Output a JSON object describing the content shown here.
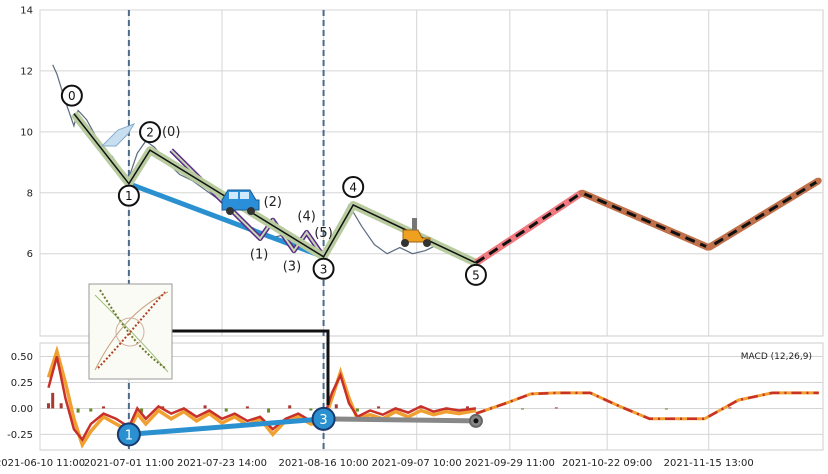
{
  "chart_data": [
    {
      "type": "line",
      "panel": "price",
      "ylim": [
        3.3,
        14
      ],
      "yticks": [
        6,
        8,
        10,
        12,
        14
      ],
      "xlim": [
        "2021-06-10",
        "2021-12-12"
      ],
      "grid": true,
      "price_series": [
        {
          "x": "2021-06-13",
          "y": 12.2
        },
        {
          "x": "2021-06-14",
          "y": 11.9
        },
        {
          "x": "2021-06-16",
          "y": 11.0
        },
        {
          "x": "2021-06-18",
          "y": 10.2
        },
        {
          "x": "2021-06-19",
          "y": 10.7
        },
        {
          "x": "2021-06-21",
          "y": 10.4
        },
        {
          "x": "2021-06-23",
          "y": 9.9
        },
        {
          "x": "2021-06-25",
          "y": 9.4
        },
        {
          "x": "2021-06-27",
          "y": 9.2
        },
        {
          "x": "2021-06-29",
          "y": 8.8
        },
        {
          "x": "2021-07-01",
          "y": 8.5
        },
        {
          "x": "2021-07-03",
          "y": 9.3
        },
        {
          "x": "2021-07-05",
          "y": 9.7
        },
        {
          "x": "2021-07-07",
          "y": 9.5
        },
        {
          "x": "2021-07-10",
          "y": 9.0
        },
        {
          "x": "2021-07-13",
          "y": 8.6
        },
        {
          "x": "2021-07-16",
          "y": 8.4
        },
        {
          "x": "2021-07-19",
          "y": 8.1
        },
        {
          "x": "2021-07-22",
          "y": 7.8
        },
        {
          "x": "2021-07-25",
          "y": 7.4
        },
        {
          "x": "2021-07-28",
          "y": 7.0
        },
        {
          "x": "2021-07-31",
          "y": 6.8
        },
        {
          "x": "2021-08-03",
          "y": 6.5
        },
        {
          "x": "2021-08-06",
          "y": 6.6
        },
        {
          "x": "2021-08-09",
          "y": 6.3
        },
        {
          "x": "2021-08-12",
          "y": 6.1
        },
        {
          "x": "2021-08-16",
          "y": 5.9
        },
        {
          "x": "2021-08-19",
          "y": 6.8
        },
        {
          "x": "2021-08-22",
          "y": 7.6
        },
        {
          "x": "2021-08-25",
          "y": 6.9
        },
        {
          "x": "2021-08-28",
          "y": 6.3
        },
        {
          "x": "2021-08-31",
          "y": 6.0
        },
        {
          "x": "2021-09-03",
          "y": 6.2
        },
        {
          "x": "2021-09-06",
          "y": 6.0
        },
        {
          "x": "2021-09-09",
          "y": 6.1
        },
        {
          "x": "2021-09-12",
          "y": 6.3
        },
        {
          "x": "2021-09-15",
          "y": 6.0
        },
        {
          "x": "2021-09-18",
          "y": 5.9
        },
        {
          "x": "2021-09-21",
          "y": 5.8
        }
      ],
      "wave_primary": [
        {
          "label": "0",
          "x": "2021-06-18",
          "y": 10.6
        },
        {
          "label": "1",
          "x": "2021-07-01",
          "y": 8.3
        },
        {
          "label": "2",
          "x": "2021-07-06",
          "y": 9.4
        },
        {
          "label": "3",
          "x": "2021-08-16",
          "y": 5.9
        },
        {
          "label": "4",
          "x": "2021-08-23",
          "y": 7.6
        },
        {
          "label": "5",
          "x": "2021-09-21",
          "y": 5.7
        }
      ],
      "wave_secondary": [
        {
          "label": "(0)",
          "x": "2021-07-11",
          "y": 9.4
        },
        {
          "label": "(1)",
          "x": "2021-08-01",
          "y": 6.5
        },
        {
          "label": "(2)",
          "x": "2021-08-04",
          "y": 7.1
        },
        {
          "label": "(3)",
          "x": "2021-08-09",
          "y": 6.1
        },
        {
          "label": "(4)",
          "x": "2021-08-12",
          "y": 6.7
        },
        {
          "label": "(5)",
          "x": "2021-08-16",
          "y": 5.9
        }
      ],
      "trend_line": [
        {
          "x": "2021-07-01",
          "y": 8.3
        },
        {
          "x": "2021-08-16",
          "y": 5.9
        }
      ],
      "forecast": [
        {
          "x": "2021-09-21",
          "y": 5.7
        },
        {
          "x": "2021-10-16",
          "y": 8.0
        },
        {
          "x": "2021-11-15",
          "y": 6.2
        },
        {
          "x": "2021-12-11",
          "y": 8.4
        }
      ],
      "vertical_markers": [
        "2021-07-01",
        "2021-08-16"
      ]
    },
    {
      "type": "line",
      "panel": "macd",
      "legend": "MACD (12,26,9)",
      "ylim": [
        -0.4,
        0.63
      ],
      "yticks": [
        -0.25,
        0.0,
        0.25,
        0.5
      ],
      "xticks": [
        "2021-06-10 11:00",
        "2021-07-01 11:00",
        "2021-07-23 14:00",
        "2021-08-16 10:00",
        "2021-09-07 10:00",
        "2021-09-29 11:00",
        "2021-10-22 09:00",
        "2021-11-15 13:00"
      ],
      "macd_line": [
        {
          "x": "2021-06-12",
          "y": 0.2
        },
        {
          "x": "2021-06-14",
          "y": 0.5
        },
        {
          "x": "2021-06-16",
          "y": 0.1
        },
        {
          "x": "2021-06-18",
          "y": -0.2
        },
        {
          "x": "2021-06-20",
          "y": -0.3
        },
        {
          "x": "2021-06-22",
          "y": -0.15
        },
        {
          "x": "2021-06-25",
          "y": -0.05
        },
        {
          "x": "2021-06-28",
          "y": -0.1
        },
        {
          "x": "2021-07-01",
          "y": -0.18
        },
        {
          "x": "2021-07-03",
          "y": 0.0
        },
        {
          "x": "2021-07-05",
          "y": -0.1
        },
        {
          "x": "2021-07-08",
          "y": 0.02
        },
        {
          "x": "2021-07-11",
          "y": -0.05
        },
        {
          "x": "2021-07-14",
          "y": 0.0
        },
        {
          "x": "2021-07-17",
          "y": -0.08
        },
        {
          "x": "2021-07-20",
          "y": -0.02
        },
        {
          "x": "2021-07-23",
          "y": -0.1
        },
        {
          "x": "2021-07-26",
          "y": -0.05
        },
        {
          "x": "2021-07-29",
          "y": -0.12
        },
        {
          "x": "2021-08-01",
          "y": -0.08
        },
        {
          "x": "2021-08-04",
          "y": -0.2
        },
        {
          "x": "2021-08-07",
          "y": -0.1
        },
        {
          "x": "2021-08-10",
          "y": -0.05
        },
        {
          "x": "2021-08-13",
          "y": -0.12
        },
        {
          "x": "2021-08-16",
          "y": -0.1
        },
        {
          "x": "2021-08-18",
          "y": 0.15
        },
        {
          "x": "2021-08-20",
          "y": 0.32
        },
        {
          "x": "2021-08-22",
          "y": 0.05
        },
        {
          "x": "2021-08-24",
          "y": -0.08
        },
        {
          "x": "2021-08-27",
          "y": -0.02
        },
        {
          "x": "2021-08-30",
          "y": -0.06
        },
        {
          "x": "2021-09-02",
          "y": 0.0
        },
        {
          "x": "2021-09-05",
          "y": -0.04
        },
        {
          "x": "2021-09-08",
          "y": 0.02
        },
        {
          "x": "2021-09-11",
          "y": -0.03
        },
        {
          "x": "2021-09-14",
          "y": 0.0
        },
        {
          "x": "2021-09-17",
          "y": -0.02
        },
        {
          "x": "2021-09-21",
          "y": 0.0
        }
      ],
      "signal_line": [
        {
          "x": "2021-06-12",
          "y": 0.3
        },
        {
          "x": "2021-06-14",
          "y": 0.55
        },
        {
          "x": "2021-06-16",
          "y": 0.25
        },
        {
          "x": "2021-06-18",
          "y": -0.1
        },
        {
          "x": "2021-06-20",
          "y": -0.35
        },
        {
          "x": "2021-06-22",
          "y": -0.22
        },
        {
          "x": "2021-06-25",
          "y": -0.08
        },
        {
          "x": "2021-06-28",
          "y": -0.15
        },
        {
          "x": "2021-07-01",
          "y": -0.22
        },
        {
          "x": "2021-07-03",
          "y": -0.05
        },
        {
          "x": "2021-07-05",
          "y": -0.15
        },
        {
          "x": "2021-07-08",
          "y": -0.02
        },
        {
          "x": "2021-07-11",
          "y": -0.1
        },
        {
          "x": "2021-07-14",
          "y": -0.03
        },
        {
          "x": "2021-07-17",
          "y": -0.12
        },
        {
          "x": "2021-07-20",
          "y": -0.05
        },
        {
          "x": "2021-07-23",
          "y": -0.14
        },
        {
          "x": "2021-07-26",
          "y": -0.08
        },
        {
          "x": "2021-07-29",
          "y": -0.16
        },
        {
          "x": "2021-08-01",
          "y": -0.1
        },
        {
          "x": "2021-08-04",
          "y": -0.25
        },
        {
          "x": "2021-08-07",
          "y": -0.12
        },
        {
          "x": "2021-08-10",
          "y": -0.08
        },
        {
          "x": "2021-08-13",
          "y": -0.15
        },
        {
          "x": "2021-08-16",
          "y": -0.14
        },
        {
          "x": "2021-08-18",
          "y": 0.1
        },
        {
          "x": "2021-08-20",
          "y": 0.35
        },
        {
          "x": "2021-08-22",
          "y": 0.1
        },
        {
          "x": "2021-08-24",
          "y": -0.1
        },
        {
          "x": "2021-08-27",
          "y": -0.06
        },
        {
          "x": "2021-08-30",
          "y": -0.1
        },
        {
          "x": "2021-09-02",
          "y": -0.03
        },
        {
          "x": "2021-09-05",
          "y": -0.08
        },
        {
          "x": "2021-09-08",
          "y": -0.02
        },
        {
          "x": "2021-09-11",
          "y": -0.06
        },
        {
          "x": "2021-09-14",
          "y": -0.03
        },
        {
          "x": "2021-09-17",
          "y": -0.05
        },
        {
          "x": "2021-09-21",
          "y": -0.02
        }
      ],
      "histogram": [
        {
          "x": "2021-06-12",
          "y": 0.05
        },
        {
          "x": "2021-06-13",
          "y": 0.15
        },
        {
          "x": "2021-06-15",
          "y": 0.05
        },
        {
          "x": "2021-06-19",
          "y": -0.04
        },
        {
          "x": "2021-06-22",
          "y": -0.03
        },
        {
          "x": "2021-06-25",
          "y": 0.02
        },
        {
          "x": "2021-07-04",
          "y": -0.04
        },
        {
          "x": "2021-07-09",
          "y": 0.02
        },
        {
          "x": "2021-07-14",
          "y": -0.02
        },
        {
          "x": "2021-07-19",
          "y": 0.03
        },
        {
          "x": "2021-07-24",
          "y": -0.03
        },
        {
          "x": "2021-07-29",
          "y": 0.02
        },
        {
          "x": "2021-08-03",
          "y": -0.04
        },
        {
          "x": "2021-08-08",
          "y": 0.03
        },
        {
          "x": "2021-08-13",
          "y": -0.02
        },
        {
          "x": "2021-08-19",
          "y": 0.04
        },
        {
          "x": "2021-08-24",
          "y": -0.03
        },
        {
          "x": "2021-08-29",
          "y": 0.02
        },
        {
          "x": "2021-09-03",
          "y": -0.02
        },
        {
          "x": "2021-09-08",
          "y": 0.02
        },
        {
          "x": "2021-09-14",
          "y": -0.02
        },
        {
          "x": "2021-09-19",
          "y": 0.02
        },
        {
          "x": "2021-09-25",
          "y": 0.02
        },
        {
          "x": "2021-10-02",
          "y": -0.01
        },
        {
          "x": "2021-10-10",
          "y": 0.01
        },
        {
          "x": "2021-11-05",
          "y": -0.01
        },
        {
          "x": "2021-11-20",
          "y": 0.01
        }
      ],
      "forecast_line": [
        {
          "x": "2021-09-21",
          "y": -0.05
        },
        {
          "x": "2021-09-28",
          "y": 0.05
        },
        {
          "x": "2021-10-04",
          "y": 0.14
        },
        {
          "x": "2021-10-10",
          "y": 0.15
        },
        {
          "x": "2021-10-18",
          "y": 0.15
        },
        {
          "x": "2021-10-25",
          "y": 0.02
        },
        {
          "x": "2021-11-01",
          "y": -0.1
        },
        {
          "x": "2021-11-14",
          "y": -0.1
        },
        {
          "x": "2021-11-22",
          "y": 0.08
        },
        {
          "x": "2021-11-30",
          "y": 0.15
        },
        {
          "x": "2021-12-11",
          "y": 0.15
        }
      ],
      "trend_points": [
        {
          "label": "1",
          "x": "2021-07-01",
          "y": -0.25
        },
        {
          "label": "3",
          "x": "2021-08-16",
          "y": -0.1
        },
        {
          "label": "",
          "x": "2021-09-21",
          "y": -0.12
        }
      ]
    }
  ]
}
